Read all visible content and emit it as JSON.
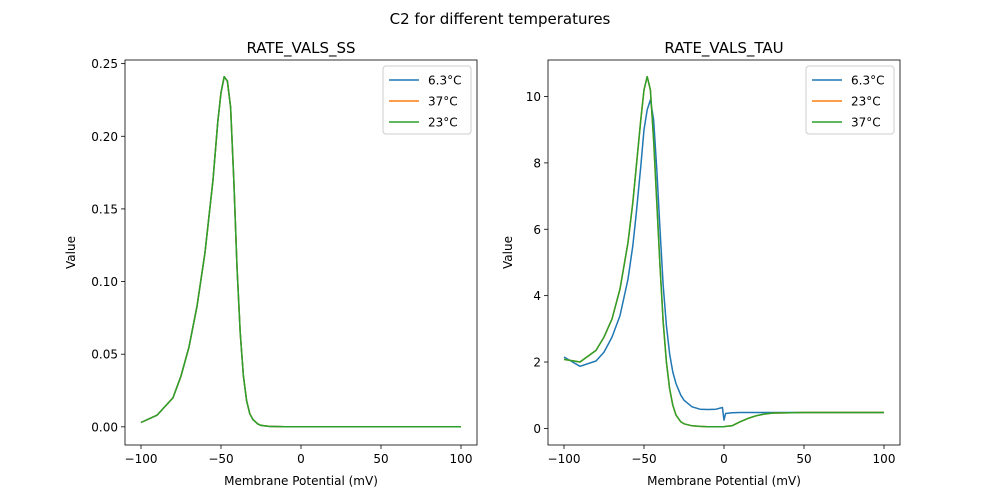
{
  "suptitle": "C2 for different temperatures",
  "chart_data": [
    {
      "type": "line",
      "title": "RATE_VALS_SS",
      "xlabel": "Membrane Potential (mV)",
      "ylabel": "Value",
      "xlim": [
        -110,
        110
      ],
      "ylim": [
        -0.0125,
        0.2525
      ],
      "xticks": [
        -100,
        -50,
        0,
        50,
        100
      ],
      "xtick_labels": [
        "−100",
        "−50",
        "0",
        "50",
        "100"
      ],
      "yticks": [
        0,
        0.05,
        0.1,
        0.15,
        0.2,
        0.25
      ],
      "ytick_labels": [
        "0.00",
        "0.05",
        "0.10",
        "0.15",
        "0.20",
        "0.25"
      ],
      "legend_position": "top-right",
      "x": [
        -100,
        -90,
        -80,
        -75,
        -70,
        -65,
        -60,
        -57,
        -55,
        -52,
        -50,
        -48,
        -46,
        -44,
        -42,
        -40,
        -38,
        -36,
        -34,
        -32,
        -30,
        -27,
        -25,
        -20,
        -10,
        0,
        25,
        50,
        75,
        100
      ],
      "series": [
        {
          "name": "6.3°C",
          "color": "#1f77b4",
          "values": [
            0.003,
            0.008,
            0.02,
            0.035,
            0.055,
            0.083,
            0.12,
            0.15,
            0.17,
            0.21,
            0.23,
            0.241,
            0.238,
            0.22,
            0.17,
            0.11,
            0.065,
            0.035,
            0.018,
            0.009,
            0.005,
            0.002,
            0.001,
            0.0003,
            0,
            0,
            0,
            0,
            0,
            0
          ]
        },
        {
          "name": "37°C",
          "color": "#ff7f0e",
          "values": [
            0.003,
            0.008,
            0.02,
            0.035,
            0.055,
            0.083,
            0.12,
            0.15,
            0.17,
            0.21,
            0.23,
            0.241,
            0.238,
            0.22,
            0.17,
            0.11,
            0.065,
            0.035,
            0.018,
            0.009,
            0.005,
            0.002,
            0.001,
            0.0003,
            0,
            0,
            0,
            0,
            0,
            0
          ]
        },
        {
          "name": "23°C",
          "color": "#2ca02c",
          "values": [
            0.003,
            0.008,
            0.02,
            0.035,
            0.055,
            0.083,
            0.12,
            0.15,
            0.17,
            0.21,
            0.23,
            0.241,
            0.238,
            0.22,
            0.17,
            0.11,
            0.065,
            0.035,
            0.018,
            0.009,
            0.005,
            0.002,
            0.001,
            0.0003,
            0,
            0,
            0,
            0,
            0,
            0
          ]
        }
      ]
    },
    {
      "type": "line",
      "title": "RATE_VALS_TAU",
      "xlabel": "Membrane Potential (mV)",
      "ylabel": "Value",
      "xlim": [
        -110,
        110
      ],
      "ylim": [
        -0.5,
        11.1
      ],
      "xticks": [
        -100,
        -50,
        0,
        50,
        100
      ],
      "xtick_labels": [
        "−100",
        "−50",
        "0",
        "50",
        "100"
      ],
      "yticks": [
        0,
        2,
        4,
        6,
        8,
        10
      ],
      "ytick_labels": [
        "0",
        "2",
        "4",
        "6",
        "8",
        "10"
      ],
      "legend_position": "top-right",
      "x": [
        -100,
        -90,
        -80,
        -75,
        -70,
        -65,
        -60,
        -57,
        -55,
        -52,
        -50,
        -48,
        -46,
        -44,
        -42,
        -40,
        -38,
        -36,
        -34,
        -32,
        -30,
        -27,
        -25,
        -20,
        -15,
        -10,
        -5,
        -1,
        0,
        1,
        5,
        10,
        15,
        20,
        25,
        30,
        50,
        75,
        100
      ],
      "series": [
        {
          "name": "6.3°C",
          "color": "#1f77b4",
          "values": [
            2.15,
            1.87,
            2.03,
            2.3,
            2.75,
            3.4,
            4.5,
            5.5,
            6.4,
            7.9,
            9.0,
            9.6,
            9.9,
            9.3,
            7.8,
            6.0,
            4.3,
            3.1,
            2.25,
            1.7,
            1.35,
            1.0,
            0.85,
            0.65,
            0.58,
            0.57,
            0.58,
            0.63,
            0.25,
            0.45,
            0.47,
            0.48,
            0.48,
            0.48,
            0.48,
            0.48,
            0.48,
            0.48,
            0.48
          ]
        },
        {
          "name": "23°C",
          "color": "#ff7f0e",
          "values": [
            2.08,
            2.0,
            2.35,
            2.75,
            3.3,
            4.2,
            5.6,
            6.8,
            7.8,
            9.3,
            10.2,
            10.6,
            10.2,
            8.7,
            6.8,
            4.9,
            3.2,
            2.0,
            1.2,
            0.7,
            0.4,
            0.2,
            0.14,
            0.08,
            0.06,
            0.05,
            0.05,
            0.05,
            0.05,
            0.06,
            0.08,
            0.2,
            0.3,
            0.38,
            0.43,
            0.46,
            0.48,
            0.48,
            0.48
          ]
        },
        {
          "name": "37°C",
          "color": "#2ca02c",
          "values": [
            2.08,
            2.0,
            2.35,
            2.75,
            3.3,
            4.2,
            5.6,
            6.8,
            7.8,
            9.3,
            10.2,
            10.6,
            10.2,
            8.7,
            6.8,
            4.9,
            3.2,
            2.0,
            1.2,
            0.7,
            0.4,
            0.2,
            0.14,
            0.08,
            0.06,
            0.05,
            0.05,
            0.05,
            0.05,
            0.06,
            0.08,
            0.2,
            0.3,
            0.38,
            0.43,
            0.46,
            0.48,
            0.48,
            0.48
          ]
        }
      ]
    }
  ]
}
